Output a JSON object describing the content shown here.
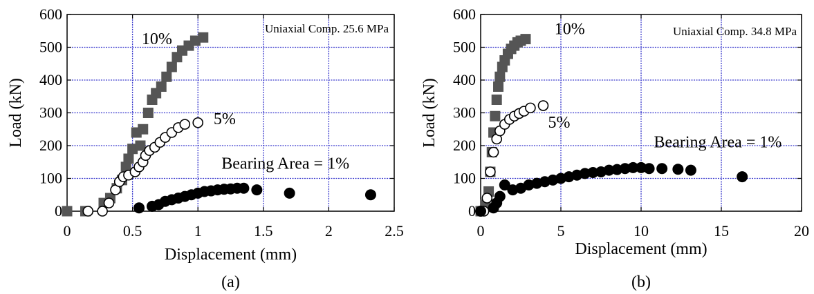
{
  "chart_data": [
    {
      "type": "scatter",
      "panel_label": "(a)",
      "annotation": "Uniaxial Comp. 25.6 MPa",
      "xlabel": "Displacement (mm)",
      "ylabel": "Load (kN)",
      "xlim": [
        0,
        2.5
      ],
      "ylim": [
        0,
        600
      ],
      "x_ticks": [
        0,
        0.5,
        1,
        1.5,
        2,
        2.5
      ],
      "x_tick_labels": [
        "0",
        "0.5",
        "1",
        "1.5",
        "2",
        "2.5"
      ],
      "y_ticks": [
        0,
        100,
        200,
        300,
        400,
        500,
        600
      ],
      "y_tick_labels": [
        "0",
        "100",
        "200",
        "300",
        "400",
        "500",
        "600"
      ],
      "grid": true,
      "grid_color": "#3a3acd",
      "series": [
        {
          "name": "10%",
          "marker": "square",
          "color": "#555555",
          "points": [
            [
              0,
              0
            ],
            [
              0.14,
              0
            ],
            [
              0.28,
              25
            ],
            [
              0.33,
              40
            ],
            [
              0.38,
              70
            ],
            [
              0.42,
              95
            ],
            [
              0.45,
              135
            ],
            [
              0.47,
              160
            ],
            [
              0.5,
              190
            ],
            [
              0.53,
              240
            ],
            [
              0.56,
              200
            ],
            [
              0.58,
              250
            ],
            [
              0.62,
              300
            ],
            [
              0.65,
              340
            ],
            [
              0.68,
              360
            ],
            [
              0.72,
              380
            ],
            [
              0.76,
              410
            ],
            [
              0.8,
              440
            ],
            [
              0.84,
              470
            ],
            [
              0.88,
              490
            ],
            [
              0.93,
              505
            ],
            [
              0.98,
              520
            ],
            [
              1.04,
              530
            ]
          ]
        },
        {
          "name": "5%",
          "marker": "open-circle",
          "color": "#000000",
          "points": [
            [
              0.16,
              0
            ],
            [
              0.27,
              0
            ],
            [
              0.32,
              25
            ],
            [
              0.37,
              65
            ],
            [
              0.4,
              90
            ],
            [
              0.43,
              105
            ],
            [
              0.47,
              110
            ],
            [
              0.52,
              120
            ],
            [
              0.55,
              135
            ],
            [
              0.58,
              150
            ],
            [
              0.6,
              170
            ],
            [
              0.63,
              185
            ],
            [
              0.67,
              195
            ],
            [
              0.71,
              210
            ],
            [
              0.75,
              225
            ],
            [
              0.8,
              240
            ],
            [
              0.85,
              255
            ],
            [
              0.9,
              265
            ],
            [
              1.0,
              270
            ]
          ]
        },
        {
          "name": "Bearing Area = 1%",
          "marker": "filled-circle",
          "color": "#000000",
          "points": [
            [
              0.55,
              10
            ],
            [
              0.65,
              15
            ],
            [
              0.7,
              20
            ],
            [
              0.75,
              30
            ],
            [
              0.8,
              35
            ],
            [
              0.85,
              40
            ],
            [
              0.9,
              45
            ],
            [
              0.95,
              50
            ],
            [
              1.0,
              55
            ],
            [
              1.05,
              60
            ],
            [
              1.1,
              62
            ],
            [
              1.15,
              65
            ],
            [
              1.2,
              67
            ],
            [
              1.25,
              68
            ],
            [
              1.3,
              70
            ],
            [
              1.35,
              70
            ],
            [
              1.45,
              65
            ],
            [
              1.7,
              55
            ],
            [
              2.32,
              50
            ]
          ]
        }
      ],
      "series_labels": [
        {
          "text": "10%",
          "x": 0.57,
          "y": 510
        },
        {
          "text": "5%",
          "x": 1.12,
          "y": 265
        },
        {
          "text": "Bearing Area = 1%",
          "x": 1.18,
          "y": 130
        }
      ]
    },
    {
      "type": "scatter",
      "panel_label": "(b)",
      "annotation": "Uniaxial Comp. 34.8 MPa",
      "xlabel": "Displacement (mm)",
      "ylabel": "Load (kN)",
      "xlim": [
        0,
        20
      ],
      "ylim": [
        0,
        600
      ],
      "x_ticks": [
        0,
        5,
        10,
        15,
        20
      ],
      "x_tick_labels": [
        "0",
        "5",
        "10",
        "15",
        "20"
      ],
      "y_ticks": [
        0,
        100,
        200,
        300,
        400,
        500,
        600
      ],
      "y_tick_labels": [
        "0",
        "100",
        "200",
        "300",
        "400",
        "500",
        "600"
      ],
      "grid": true,
      "grid_color": "#3a3acd",
      "series": [
        {
          "name": "10%",
          "marker": "square",
          "color": "#555555",
          "points": [
            [
              0,
              0
            ],
            [
              0.3,
              20
            ],
            [
              0.5,
              60
            ],
            [
              0.6,
              120
            ],
            [
              0.7,
              180
            ],
            [
              0.8,
              240
            ],
            [
              0.9,
              290
            ],
            [
              1.0,
              340
            ],
            [
              1.1,
              380
            ],
            [
              1.2,
              410
            ],
            [
              1.35,
              440
            ],
            [
              1.5,
              460
            ],
            [
              1.7,
              480
            ],
            [
              1.9,
              495
            ],
            [
              2.1,
              505
            ],
            [
              2.3,
              515
            ],
            [
              2.5,
              520
            ],
            [
              2.8,
              525
            ]
          ]
        },
        {
          "name": "5%",
          "marker": "open-circle",
          "color": "#000000",
          "points": [
            [
              0.2,
              0
            ],
            [
              0.4,
              40
            ],
            [
              0.6,
              120
            ],
            [
              0.8,
              180
            ],
            [
              1.0,
              220
            ],
            [
              1.2,
              245
            ],
            [
              1.5,
              265
            ],
            [
              1.8,
              280
            ],
            [
              2.1,
              290
            ],
            [
              2.4,
              298
            ],
            [
              2.7,
              305
            ],
            [
              3.1,
              315
            ],
            [
              3.9,
              322
            ]
          ]
        },
        {
          "name": "Bearing Area = 1%",
          "marker": "filled-circle",
          "color": "#000000",
          "points": [
            [
              0,
              0
            ],
            [
              0.8,
              10
            ],
            [
              1.0,
              25
            ],
            [
              1.2,
              45
            ],
            [
              1.5,
              80
            ],
            [
              2.0,
              65
            ],
            [
              2.5,
              70
            ],
            [
              3.0,
              80
            ],
            [
              3.5,
              85
            ],
            [
              4.0,
              90
            ],
            [
              4.5,
              95
            ],
            [
              5.0,
              100
            ],
            [
              5.5,
              105
            ],
            [
              6.0,
              110
            ],
            [
              6.5,
              115
            ],
            [
              7.0,
              118
            ],
            [
              7.5,
              120
            ],
            [
              8.0,
              125
            ],
            [
              8.5,
              127
            ],
            [
              9.0,
              130
            ],
            [
              9.5,
              133
            ],
            [
              10.0,
              133
            ],
            [
              10.5,
              130
            ],
            [
              11.3,
              130
            ],
            [
              12.3,
              128
            ],
            [
              13.1,
              125
            ],
            [
              16.3,
              105
            ]
          ]
        }
      ],
      "series_labels": [
        {
          "text": "10%",
          "x": 4.6,
          "y": 540
        },
        {
          "text": "5%",
          "x": 4.2,
          "y": 255
        },
        {
          "text": "Bearing Area = 1%",
          "x": 10.8,
          "y": 195
        }
      ]
    }
  ]
}
